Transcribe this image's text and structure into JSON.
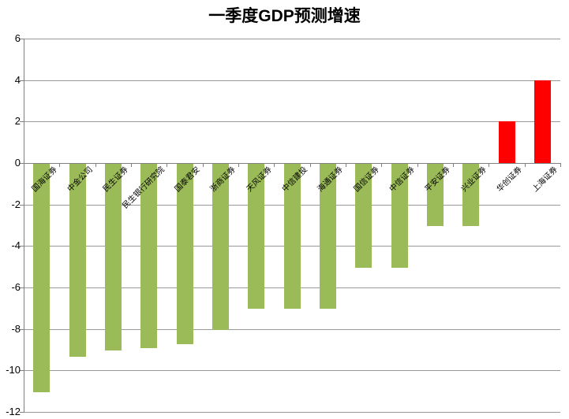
{
  "chart_data": {
    "type": "bar",
    "title": "一季度GDP预测增速",
    "categories": [
      "国海证券",
      "中金公司",
      "民生证券",
      "民生银行研究院",
      "国泰君安",
      "浙商证券",
      "天风证券",
      "中信建投",
      "海通证券",
      "国信证券",
      "中信证券",
      "平安证券",
      "兴业证券",
      "华创证券",
      "上海证券"
    ],
    "values": [
      -11,
      -9.3,
      -9,
      -8.9,
      -8.7,
      -8,
      -7,
      -7,
      -7,
      -5,
      -5,
      -3,
      -3,
      2,
      4
    ],
    "xlabel": "",
    "ylabel": "",
    "ylim": [
      -12,
      6
    ],
    "ytick_step": 2,
    "grid": true,
    "legend_position": "none",
    "colors": {
      "bar_negative": "#9BBB59",
      "bar_positive": "#FF0000",
      "gridline": "#999999",
      "axis": "#808080",
      "title": "#000000",
      "tick_label": "#000000"
    }
  }
}
